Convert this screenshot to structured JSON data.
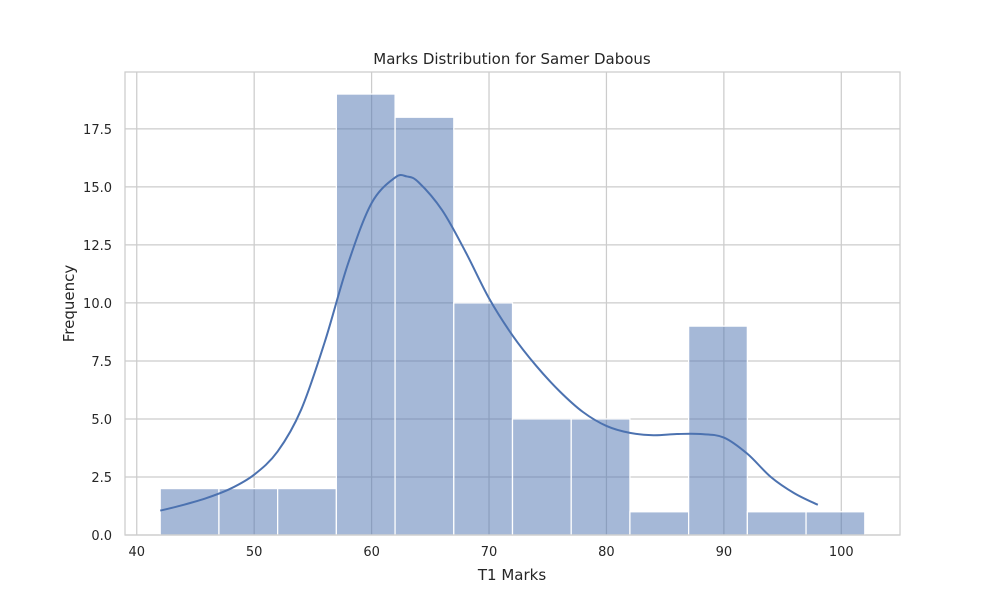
{
  "chart_data": {
    "type": "bar",
    "subtype": "histogram-with-kde",
    "title": "Marks Distribution for Samer Dabous",
    "xlabel": "T1 Marks",
    "ylabel": "Frequency",
    "xlim": [
      39,
      105
    ],
    "ylim": [
      0,
      19.95
    ],
    "grid": true,
    "bar_color": "#4c72b0",
    "line_color": "#4c72b0",
    "bins": [
      {
        "x0": 42,
        "x1": 47,
        "count": 2
      },
      {
        "x0": 47,
        "x1": 52,
        "count": 2
      },
      {
        "x0": 52,
        "x1": 57,
        "count": 2
      },
      {
        "x0": 57,
        "x1": 62,
        "count": 19
      },
      {
        "x0": 62,
        "x1": 67,
        "count": 18
      },
      {
        "x0": 67,
        "x1": 72,
        "count": 10
      },
      {
        "x0": 72,
        "x1": 77,
        "count": 5
      },
      {
        "x0": 77,
        "x1": 82,
        "count": 5
      },
      {
        "x0": 82,
        "x1": 87,
        "count": 1
      },
      {
        "x0": 87,
        "x1": 92,
        "count": 9
      },
      {
        "x0": 92,
        "x1": 97,
        "count": 1
      },
      {
        "x0": 97,
        "x1": 102,
        "count": 1
      }
    ],
    "kde": {
      "x": [
        42,
        44,
        46,
        48,
        50,
        52,
        54,
        56,
        58,
        60,
        62,
        63,
        64,
        66,
        68,
        70,
        72,
        74,
        76,
        78,
        80,
        82,
        84,
        86,
        88,
        90,
        92,
        94,
        96,
        98
      ],
      "y": [
        1.05,
        1.3,
        1.6,
        2.0,
        2.6,
        3.6,
        5.4,
        8.3,
        11.7,
        14.3,
        15.4,
        15.45,
        15.2,
        14.0,
        12.2,
        10.2,
        8.6,
        7.3,
        6.2,
        5.3,
        4.7,
        4.4,
        4.3,
        4.35,
        4.35,
        4.2,
        3.5,
        2.5,
        1.8,
        1.3
      ]
    },
    "xticks": [
      {
        "value": 40,
        "label": "40"
      },
      {
        "value": 50,
        "label": "50"
      },
      {
        "value": 60,
        "label": "60"
      },
      {
        "value": 70,
        "label": "70"
      },
      {
        "value": 80,
        "label": "80"
      },
      {
        "value": 90,
        "label": "90"
      },
      {
        "value": 100,
        "label": "100"
      }
    ],
    "yticks": [
      {
        "value": 0,
        "label": "0.0"
      },
      {
        "value": 2.5,
        "label": "2.5"
      },
      {
        "value": 5,
        "label": "5.0"
      },
      {
        "value": 7.5,
        "label": "7.5"
      },
      {
        "value": 10,
        "label": "10.0"
      },
      {
        "value": 12.5,
        "label": "12.5"
      },
      {
        "value": 15,
        "label": "15.0"
      },
      {
        "value": 17.5,
        "label": "17.5"
      }
    ]
  }
}
